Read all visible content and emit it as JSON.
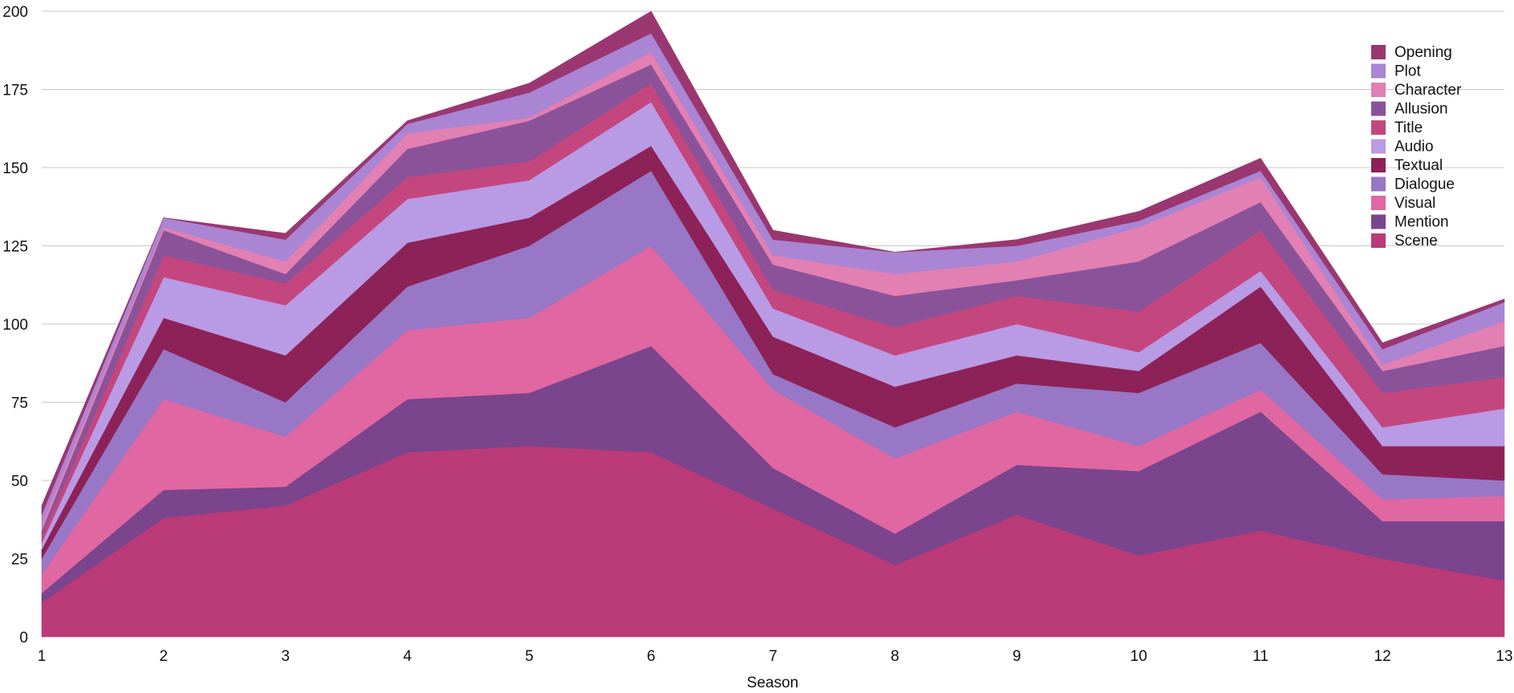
{
  "chart_data": {
    "type": "area",
    "stacked": true,
    "title": "",
    "xlabel": "Season",
    "ylabel": "",
    "x": [
      1,
      2,
      3,
      4,
      5,
      6,
      7,
      8,
      9,
      10,
      11,
      12,
      13
    ],
    "ylim": [
      0,
      200
    ],
    "yticks": [
      0,
      25,
      50,
      75,
      100,
      125,
      150,
      175,
      200
    ],
    "grid": true,
    "legend_position": "top-right",
    "series": [
      {
        "name": "Scene",
        "color": "#bb3a78",
        "values": [
          11,
          38,
          42,
          59,
          61,
          59,
          41,
          23,
          39,
          26,
          34,
          25,
          18
        ]
      },
      {
        "name": "Mention",
        "color": "#7a458c",
        "values": [
          3,
          9,
          6,
          17,
          17,
          34,
          13,
          10,
          16,
          27,
          38,
          12,
          19
        ]
      },
      {
        "name": "Visual",
        "color": "#e067a1",
        "values": [
          6,
          29,
          16,
          22,
          24,
          32,
          25,
          24,
          17,
          8,
          7,
          7,
          8
        ]
      },
      {
        "name": "Dialogue",
        "color": "#9877c6",
        "values": [
          5,
          16,
          11,
          14,
          23,
          24,
          5,
          10,
          9,
          17,
          15,
          8,
          5
        ]
      },
      {
        "name": "Textual",
        "color": "#8d2258",
        "values": [
          3,
          10,
          15,
          14,
          9,
          8,
          12,
          13,
          9,
          7,
          18,
          9,
          11
        ]
      },
      {
        "name": "Audio",
        "color": "#b99ae4",
        "values": [
          2,
          13,
          16,
          14,
          12,
          14,
          9,
          10,
          10,
          6,
          5,
          6,
          12
        ]
      },
      {
        "name": "Title",
        "color": "#c4467f",
        "values": [
          2,
          7,
          7,
          7,
          6,
          6,
          6,
          9,
          9,
          13,
          13,
          11,
          10
        ]
      },
      {
        "name": "Allusion",
        "color": "#8a5399",
        "values": [
          2,
          8,
          3,
          9,
          13,
          6,
          8,
          10,
          5,
          16,
          9,
          7,
          10
        ]
      },
      {
        "name": "Character",
        "color": "#e27fb3",
        "values": [
          2,
          1,
          4,
          5,
          1,
          4,
          3,
          7,
          6,
          11,
          8,
          2,
          8
        ]
      },
      {
        "name": "Plot",
        "color": "#a985d3",
        "values": [
          3,
          3,
          7,
          3,
          8,
          6,
          5,
          7,
          5,
          2,
          2,
          5,
          6
        ]
      },
      {
        "name": "Opening",
        "color": "#9a3770",
        "values": [
          3,
          0,
          2,
          1,
          3,
          7,
          3,
          0,
          2,
          3,
          4,
          2,
          1
        ]
      }
    ],
    "legend_order": [
      "Opening",
      "Plot",
      "Character",
      "Allusion",
      "Title",
      "Audio",
      "Textual",
      "Dialogue",
      "Visual",
      "Mention",
      "Scene"
    ]
  }
}
